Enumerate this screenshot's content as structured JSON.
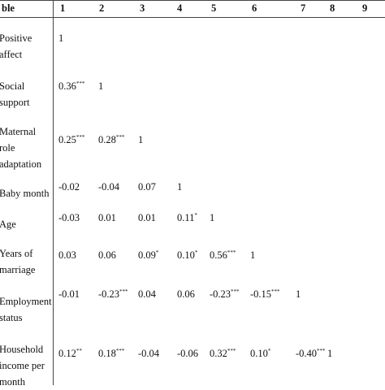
{
  "table": {
    "header": [
      "ble",
      "1",
      "2",
      "3",
      "4",
      "5",
      "6",
      "7",
      "8",
      "9"
    ],
    "rows": [
      {
        "label": "Positive affect",
        "cells": [
          {
            "text": "1"
          }
        ]
      },
      {
        "label": "Social support",
        "cells": [
          {
            "text": "0.36",
            "sup": "***"
          },
          {
            "text": "1"
          }
        ]
      },
      {
        "label": "Maternal role adaptation",
        "cells": [
          {
            "text": "0.25",
            "sup": "***"
          },
          {
            "text": "0.28",
            "sup": "***"
          },
          {
            "text": "1"
          }
        ]
      },
      {
        "label": "Baby month",
        "cells": [
          {
            "text": "-0.02"
          },
          {
            "text": "-0.04"
          },
          {
            "text": "0.07"
          },
          {
            "text": "1"
          }
        ]
      },
      {
        "label": "Age",
        "cells": [
          {
            "text": "-0.03"
          },
          {
            "text": "0.01"
          },
          {
            "text": "0.01"
          },
          {
            "text": "0.11",
            "sup": "*"
          },
          {
            "text": "1"
          }
        ]
      },
      {
        "label": "Years of marriage",
        "cells": [
          {
            "text": "0.03"
          },
          {
            "text": "0.06"
          },
          {
            "text": "0.09",
            "sup": "*"
          },
          {
            "text": "0.10",
            "sup": "*"
          },
          {
            "text": "0.56",
            "sup": "***"
          },
          {
            "text": "1"
          }
        ]
      },
      {
        "label": "Employment status",
        "cells": [
          {
            "text": "-0.01"
          },
          {
            "text": "-0.23",
            "sup": "***"
          },
          {
            "text": "0.04"
          },
          {
            "text": "0.06"
          },
          {
            "text": "-0.23",
            "sup": "***"
          },
          {
            "text": "-0.15",
            "sup": "***"
          },
          {
            "text": "1"
          }
        ]
      },
      {
        "label": "Household income per month",
        "cells": [
          {
            "text": "0.12",
            "sup": "**"
          },
          {
            "text": "0.18",
            "sup": "***"
          },
          {
            "text": "-0.04"
          },
          {
            "text": "-0.06"
          },
          {
            "text": "0.32",
            "sup": "***"
          },
          {
            "text": "0.10",
            "sup": "*"
          },
          {
            "text": "-0.40",
            "sup": "***"
          },
          {
            "text": "1"
          }
        ]
      }
    ]
  }
}
